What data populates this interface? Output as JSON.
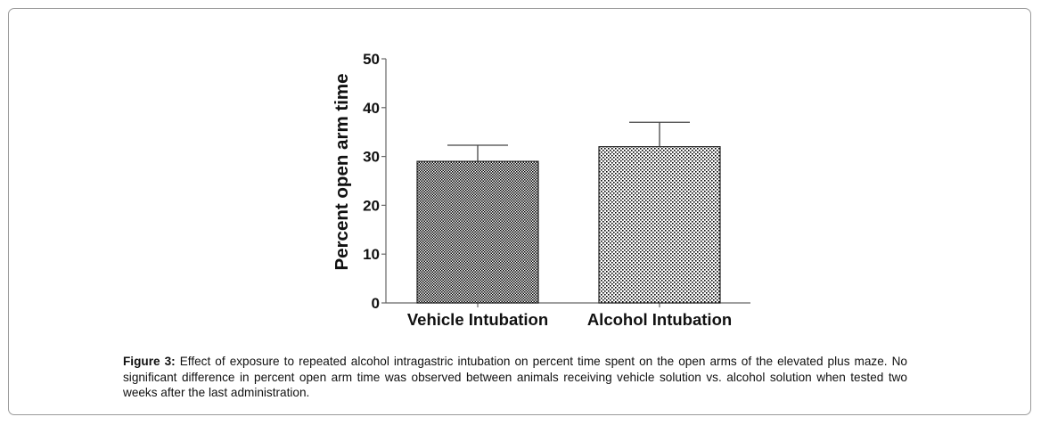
{
  "chart_data": {
    "type": "bar",
    "categories": [
      "Vehicle Intubation",
      "Alcohol Intubation"
    ],
    "values": [
      29,
      32
    ],
    "error_upper": [
      32.3,
      37
    ],
    "ylabel": "Percent open arm time",
    "xlabel": "",
    "ylim": [
      0,
      50
    ],
    "yticks": [
      "0",
      "10",
      "20",
      "30",
      "40",
      "50"
    ],
    "grid": false,
    "legend": "none",
    "bar_pattern_colors": [
      "#000000",
      "#ffffff"
    ]
  },
  "caption": {
    "label": "Figure 3:",
    "text": " Effect of exposure to repeated alcohol intragastric intubation on percent time spent on the open arms of the elevated plus maze. No significant difference in percent open arm time was observed between animals receiving vehicle solution vs. alcohol solution when tested two weeks after the last administration."
  }
}
